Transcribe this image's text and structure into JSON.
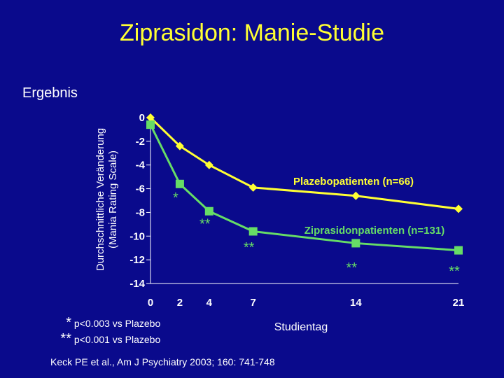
{
  "slide": {
    "title": "Ziprasidon: Manie-Studie",
    "subtitle": "Ergebnis",
    "reference": "Keck PE et al., Am J Psychiatry 2003; 160: 741-748"
  },
  "chart_data": {
    "type": "line",
    "ylabel_line1": "Durchschnittliche Veränderung",
    "ylabel_line2": "(Mania Rating Scale)",
    "xlabel": "Studientag",
    "ylim": [
      -14,
      0
    ],
    "yticks": [
      0,
      -2,
      -4,
      -6,
      -8,
      -10,
      -12,
      -14
    ],
    "xticks": [
      0,
      2,
      4,
      7,
      14,
      21
    ],
    "grid": false,
    "series": [
      {
        "name": "Plazebopatienten (n=66)",
        "color": "#ffff33",
        "marker": "diamond",
        "x": [
          0,
          2,
          4,
          7,
          14,
          21
        ],
        "y": [
          0,
          -2.4,
          -4.0,
          -5.9,
          -6.6,
          -7.7
        ]
      },
      {
        "name": "Ziprasidonpatienten (n=131)",
        "color": "#66dd66",
        "marker": "square",
        "x": [
          0,
          2,
          4,
          7,
          14,
          21
        ],
        "y": [
          -0.6,
          -5.6,
          -7.9,
          -9.6,
          -10.6,
          -11.2
        ]
      }
    ],
    "significance": [
      {
        "x": 2,
        "y": -6.8,
        "label": "*"
      },
      {
        "x": 4,
        "y": -9.0,
        "label": "**"
      },
      {
        "x": 7,
        "y": -11.0,
        "label": "**"
      },
      {
        "x": 14,
        "y": -12.7,
        "label": "**"
      },
      {
        "x": 21,
        "y": -13.0,
        "label": "**"
      }
    ],
    "footnotes": [
      {
        "symbol": "*",
        "text": "p<0.003 vs Plazebo"
      },
      {
        "symbol": "**",
        "text": "p<0.001 vs Plazebo"
      }
    ]
  }
}
